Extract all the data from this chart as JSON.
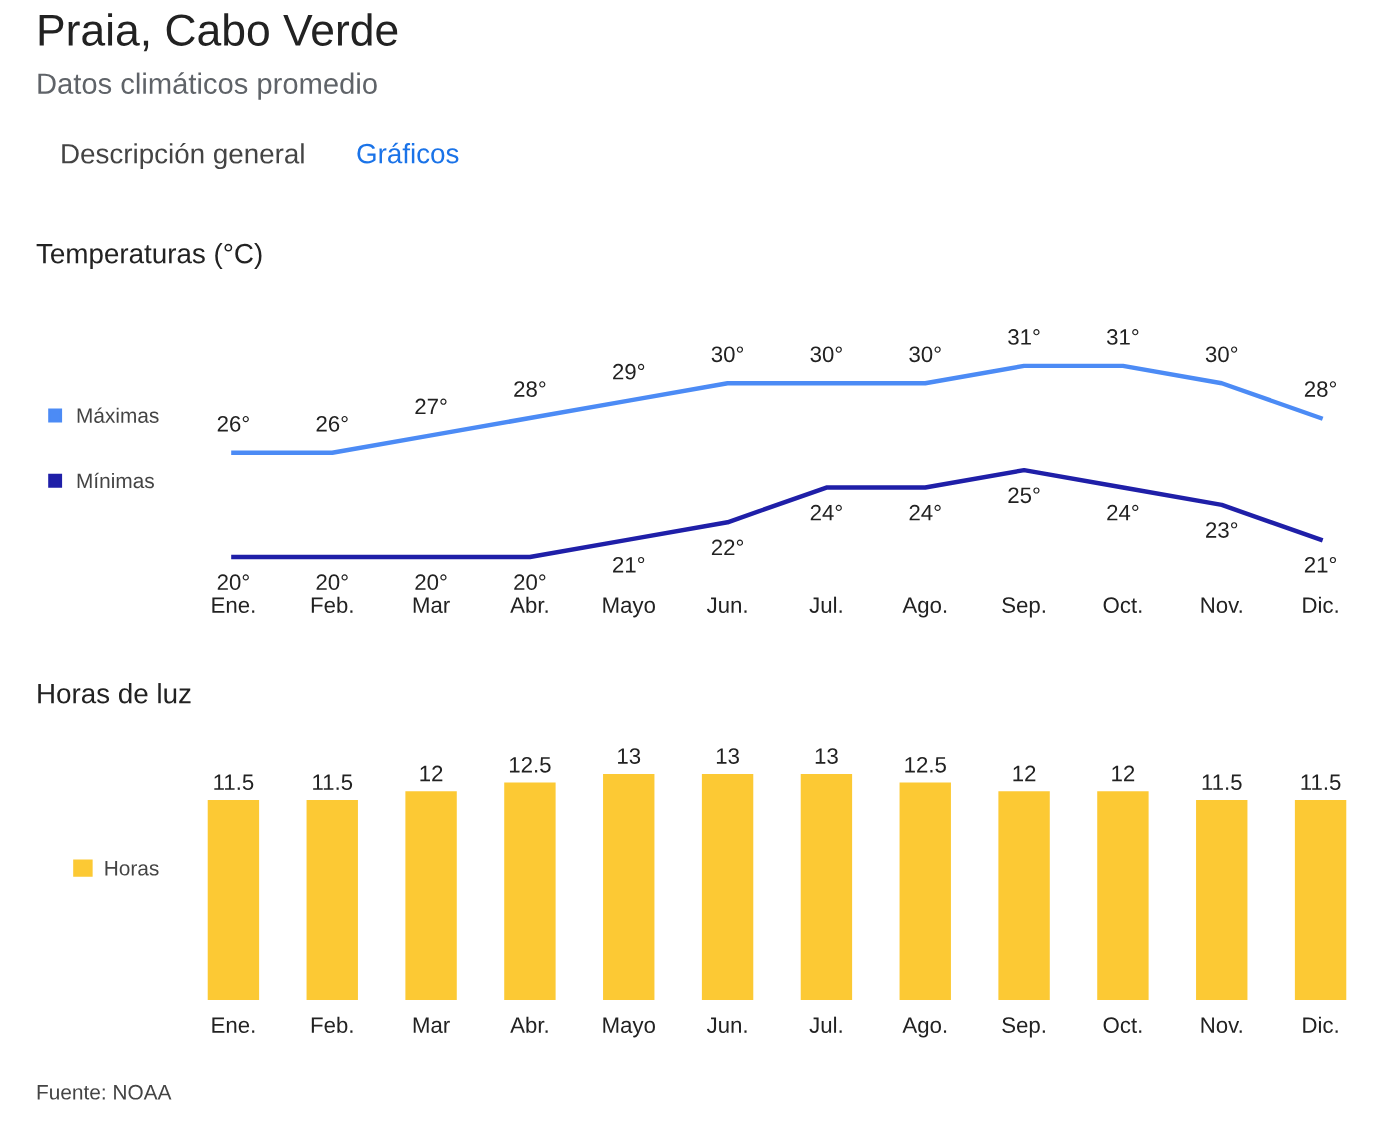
{
  "chart_data": [
    {
      "type": "line",
      "title": "Temperaturas (°C)",
      "annotations": [
        "Praia, Cabo Verde",
        "Datos climáticos promedio",
        "Descripción general",
        "Gráficos"
      ],
      "categories": [
        "Ene.",
        "Feb.",
        "Mar",
        "Abr.",
        "Mayo",
        "Jun.",
        "Jul.",
        "Ago.",
        "Sep.",
        "Oct.",
        "Nov.",
        "Dic."
      ],
      "series": [
        {
          "name": "Máximas",
          "color": "#4c8bf5",
          "values": [
            26,
            26,
            27,
            28,
            29,
            30,
            30,
            30,
            31,
            31,
            30,
            28
          ],
          "value_labels": [
            "26°",
            "26°",
            "27°",
            "28°",
            "29°",
            "30°",
            "30°",
            "30°",
            "31°",
            "31°",
            "30°",
            "28°"
          ]
        },
        {
          "name": "Mínimas",
          "color": "#1f1fa8",
          "values": [
            20,
            20,
            20,
            20,
            21,
            22,
            24,
            24,
            25,
            24,
            23,
            21
          ],
          "value_labels": [
            "20°",
            "20°",
            "20°",
            "20°",
            "21°",
            "22°",
            "24°",
            "24°",
            "25°",
            "24°",
            "23°",
            "21°"
          ]
        }
      ],
      "legend": "left"
    },
    {
      "type": "bar",
      "title": "Horas de luz",
      "annotations": [
        "Fuente: NOAA"
      ],
      "categories": [
        "Ene.",
        "Feb.",
        "Mar",
        "Abr.",
        "Mayo",
        "Jun.",
        "Jul.",
        "Ago.",
        "Sep.",
        "Oct.",
        "Nov.",
        "Dic."
      ],
      "series": [
        {
          "name": "Horas",
          "color": "#fcc934",
          "values": [
            11.5,
            11.5,
            12,
            12.5,
            13,
            13,
            13,
            12.5,
            12,
            12,
            11.5,
            11.5
          ]
        }
      ],
      "data_labels": true,
      "legend": "left"
    }
  ]
}
